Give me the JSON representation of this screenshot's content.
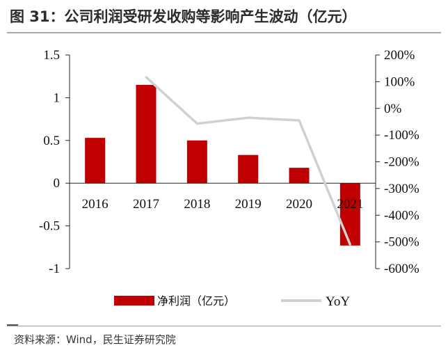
{
  "title": "图 31：公司利润受研发收购等影响产生波动（亿元）",
  "source": "资料来源：Wind，民生证券研究院",
  "chart_data": {
    "type": "bar",
    "categories": [
      "2016",
      "2017",
      "2018",
      "2019",
      "2020",
      "2021"
    ],
    "series": [
      {
        "name": "净利润（亿元）",
        "type": "bar",
        "axis": "left",
        "values": [
          0.53,
          1.15,
          0.5,
          0.33,
          0.18,
          -0.73
        ],
        "color": "#c00000"
      },
      {
        "name": "YoY",
        "type": "line",
        "axis": "right",
        "values": [
          null,
          117,
          -57,
          -35,
          -45,
          -510
        ],
        "color": "#d0d0d0"
      }
    ],
    "y_left": {
      "min": -1,
      "max": 1.5,
      "ticks": [
        1.5,
        1,
        0.5,
        0,
        -0.5,
        -1
      ]
    },
    "y_right": {
      "min": -600,
      "max": 200,
      "step": 100,
      "unit": "%",
      "tick_labels": [
        "200%",
        "100%",
        "0%",
        "-100%",
        "-200%",
        "-300%",
        "-400%",
        "-500%",
        "-600%"
      ]
    },
    "grid": false,
    "legend_position": "bottom"
  }
}
